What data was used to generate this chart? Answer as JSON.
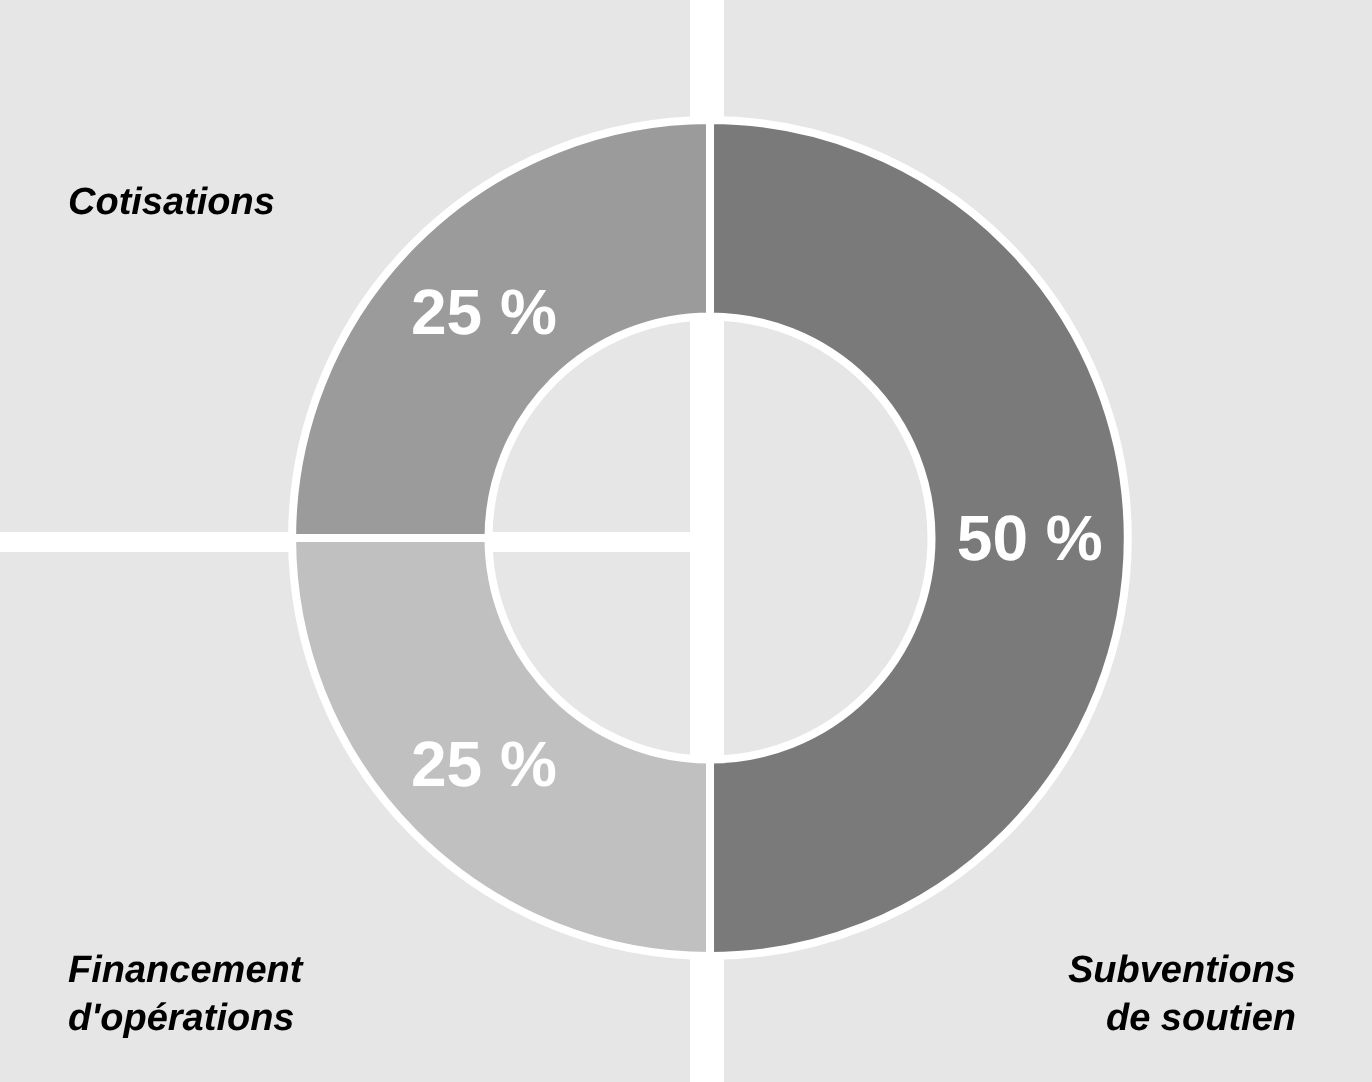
{
  "chart_data": {
    "type": "donut",
    "categories": [
      "Subventions de soutien",
      "Financement d'opérations",
      "Cotisations"
    ],
    "values": [
      50,
      25,
      25
    ],
    "colors": [
      "#7a7a7a",
      "#c0c0c0",
      "#9b9b9b"
    ],
    "value_labels": [
      "50 %",
      "25 %",
      "25 %"
    ]
  }
}
